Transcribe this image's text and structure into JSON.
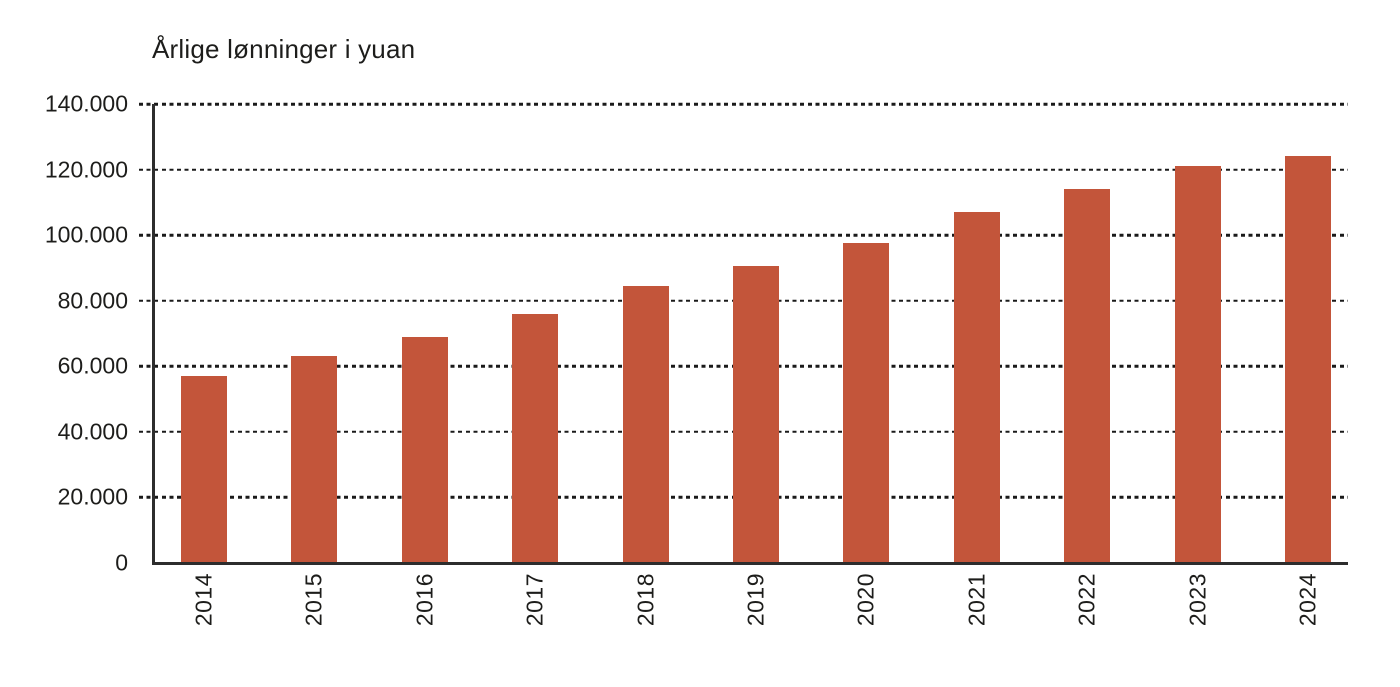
{
  "colors": {
    "bar": "#c3553a",
    "axis": "#2d2d2d",
    "grid": "#1a1a1a",
    "text": "#1d1d1b",
    "background": "#ffffff"
  },
  "chart_data": {
    "type": "bar",
    "title": "Årlige lønninger i yuan",
    "categories": [
      "2014",
      "2015",
      "2016",
      "2017",
      "2018",
      "2019",
      "2020",
      "2021",
      "2022",
      "2023",
      "2024"
    ],
    "values": [
      57000,
      63000,
      69000,
      76000,
      84500,
      90500,
      97500,
      107000,
      114000,
      121000,
      124000
    ],
    "xlabel": "",
    "ylabel": "",
    "ylim": [
      0,
      140000
    ],
    "yticks": [
      {
        "value": 0,
        "label": "0"
      },
      {
        "value": 20000,
        "label": "20.000"
      },
      {
        "value": 40000,
        "label": "40.000"
      },
      {
        "value": 60000,
        "label": "60.000"
      },
      {
        "value": 80000,
        "label": "80.000"
      },
      {
        "value": 100000,
        "label": "100.000"
      },
      {
        "value": 120000,
        "label": "120.000"
      },
      {
        "value": 140000,
        "label": "140.000"
      }
    ],
    "grid": "horizontal-dotted",
    "legend": "none",
    "x_label_rotation": -90
  }
}
